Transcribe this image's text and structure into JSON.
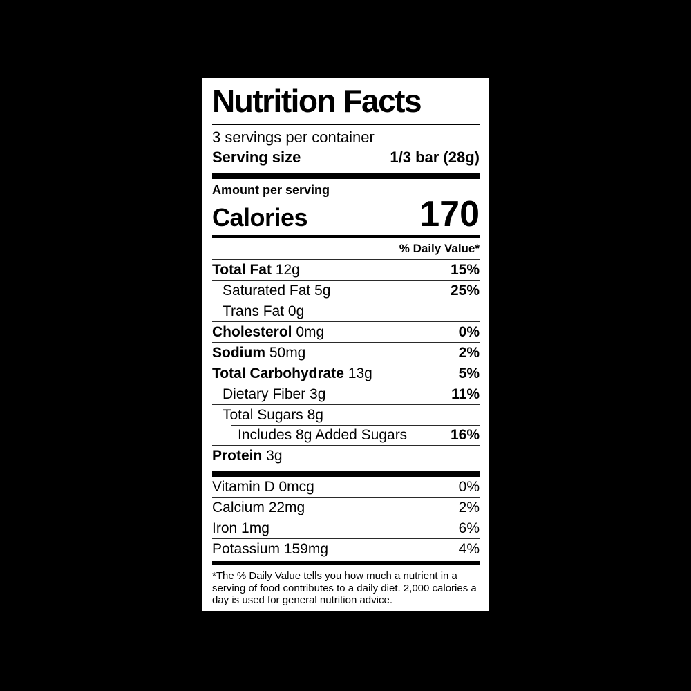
{
  "colors": {
    "background": "#000000",
    "panel": "#ffffff",
    "text": "#000000"
  },
  "label": {
    "title": "Nutrition Facts",
    "servings_per_container": "3 servings per container",
    "serving_size_label": "Serving size",
    "serving_size_value": "1/3 bar (28g)",
    "amount_per_serving": "Amount per serving",
    "calories_label": "Calories",
    "calories_value": "170",
    "daily_value_header": "% Daily Value*",
    "nutrients": [
      {
        "name": "Total Fat",
        "amount": "12g",
        "dv": "15%",
        "bold": true,
        "indent": 0
      },
      {
        "name": "Saturated Fat",
        "amount": "5g",
        "dv": "25%",
        "bold": false,
        "indent": 1
      },
      {
        "name": "Trans Fat",
        "amount": "0g",
        "dv": "",
        "bold": false,
        "indent": 1
      },
      {
        "name": "Cholesterol",
        "amount": "0mg",
        "dv": "0%",
        "bold": true,
        "indent": 0
      },
      {
        "name": "Sodium",
        "amount": "50mg",
        "dv": "2%",
        "bold": true,
        "indent": 0
      },
      {
        "name": "Total Carbohydrate",
        "amount": "13g",
        "dv": "5%",
        "bold": true,
        "indent": 0
      },
      {
        "name": "Dietary Fiber",
        "amount": "3g",
        "dv": "11%",
        "bold": false,
        "indent": 1
      },
      {
        "name": "Total Sugars",
        "amount": "8g",
        "dv": "",
        "bold": false,
        "indent": 1
      },
      {
        "name": "Includes 8g Added Sugars",
        "amount": "",
        "dv": "16%",
        "bold": false,
        "indent": 2
      },
      {
        "name": "Protein",
        "amount": "3g",
        "dv": "",
        "bold": true,
        "indent": 0
      }
    ],
    "micronutrients": [
      {
        "name": "Vitamin D",
        "amount": "0mcg",
        "dv": "0%"
      },
      {
        "name": "Calcium",
        "amount": "22mg",
        "dv": "2%"
      },
      {
        "name": "Iron",
        "amount": "1mg",
        "dv": "6%"
      },
      {
        "name": "Potassium",
        "amount": "159mg",
        "dv": "4%"
      }
    ],
    "footnote": "*The % Daily Value tells you how much a nutrient in a serving of food contributes to a daily diet. 2,000 calories a day is used for general nutrition advice."
  }
}
